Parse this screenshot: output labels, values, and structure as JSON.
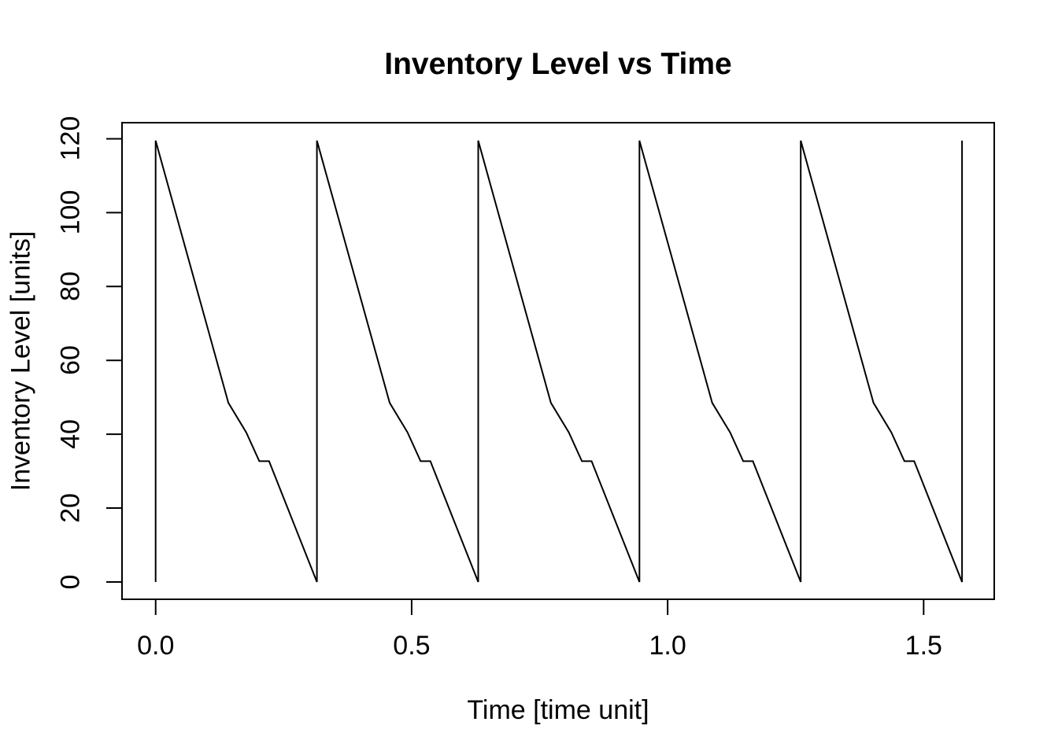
{
  "page": {
    "background_color": "#ffffff",
    "text_color": "#000000"
  },
  "chart_data": {
    "type": "line",
    "title": "Inventory Level vs Time",
    "xlabel": "Time [time unit]",
    "ylabel": "Inventory Level [units]",
    "line_color": "#000000",
    "line_width": 2,
    "grid": false,
    "legend": "none",
    "xlim": [
      -0.0657,
      1.6379
    ],
    "ylim": [
      -4.69,
      124.36
    ],
    "x_ticks": [
      0.0,
      0.5,
      1.0,
      1.5
    ],
    "x_tick_labels": [
      "0.0",
      "0.5",
      "1.0",
      "1.5"
    ],
    "y_ticks": [
      0,
      20,
      40,
      60,
      80,
      100,
      120
    ],
    "y_tick_labels": [
      "0",
      "20",
      "40",
      "60",
      "80",
      "100",
      "120"
    ],
    "description": "Deterministic sawtooth inventory process: 5 replenishment cycles of period 0.315; instant replenishment to 119.5 units, piecewise-linear depletion with slope changes at ~48.5 and ~40.5, a short flat plateau at ~32.7, then depletion to 0.",
    "points": [
      [
        0.0,
        0.0
      ],
      [
        0.0,
        119.5
      ],
      [
        0.142,
        48.5
      ],
      [
        0.177,
        40.5
      ],
      [
        0.2025,
        32.7
      ],
      [
        0.2215,
        32.7
      ],
      [
        0.315,
        0.0
      ],
      [
        0.315,
        119.5
      ],
      [
        0.457,
        48.5
      ],
      [
        0.492,
        40.5
      ],
      [
        0.5175,
        32.7
      ],
      [
        0.5365,
        32.7
      ],
      [
        0.63,
        0.0
      ],
      [
        0.63,
        119.5
      ],
      [
        0.772,
        48.5
      ],
      [
        0.807,
        40.5
      ],
      [
        0.8325,
        32.7
      ],
      [
        0.8515,
        32.7
      ],
      [
        0.945,
        0.0
      ],
      [
        0.945,
        119.5
      ],
      [
        1.087,
        48.5
      ],
      [
        1.122,
        40.5
      ],
      [
        1.1475,
        32.7
      ],
      [
        1.1665,
        32.7
      ],
      [
        1.26,
        0.0
      ],
      [
        1.26,
        119.5
      ],
      [
        1.402,
        48.5
      ],
      [
        1.437,
        40.5
      ],
      [
        1.4625,
        32.7
      ],
      [
        1.4815,
        32.7
      ],
      [
        1.575,
        0.0
      ],
      [
        1.575,
        119.5
      ]
    ]
  }
}
